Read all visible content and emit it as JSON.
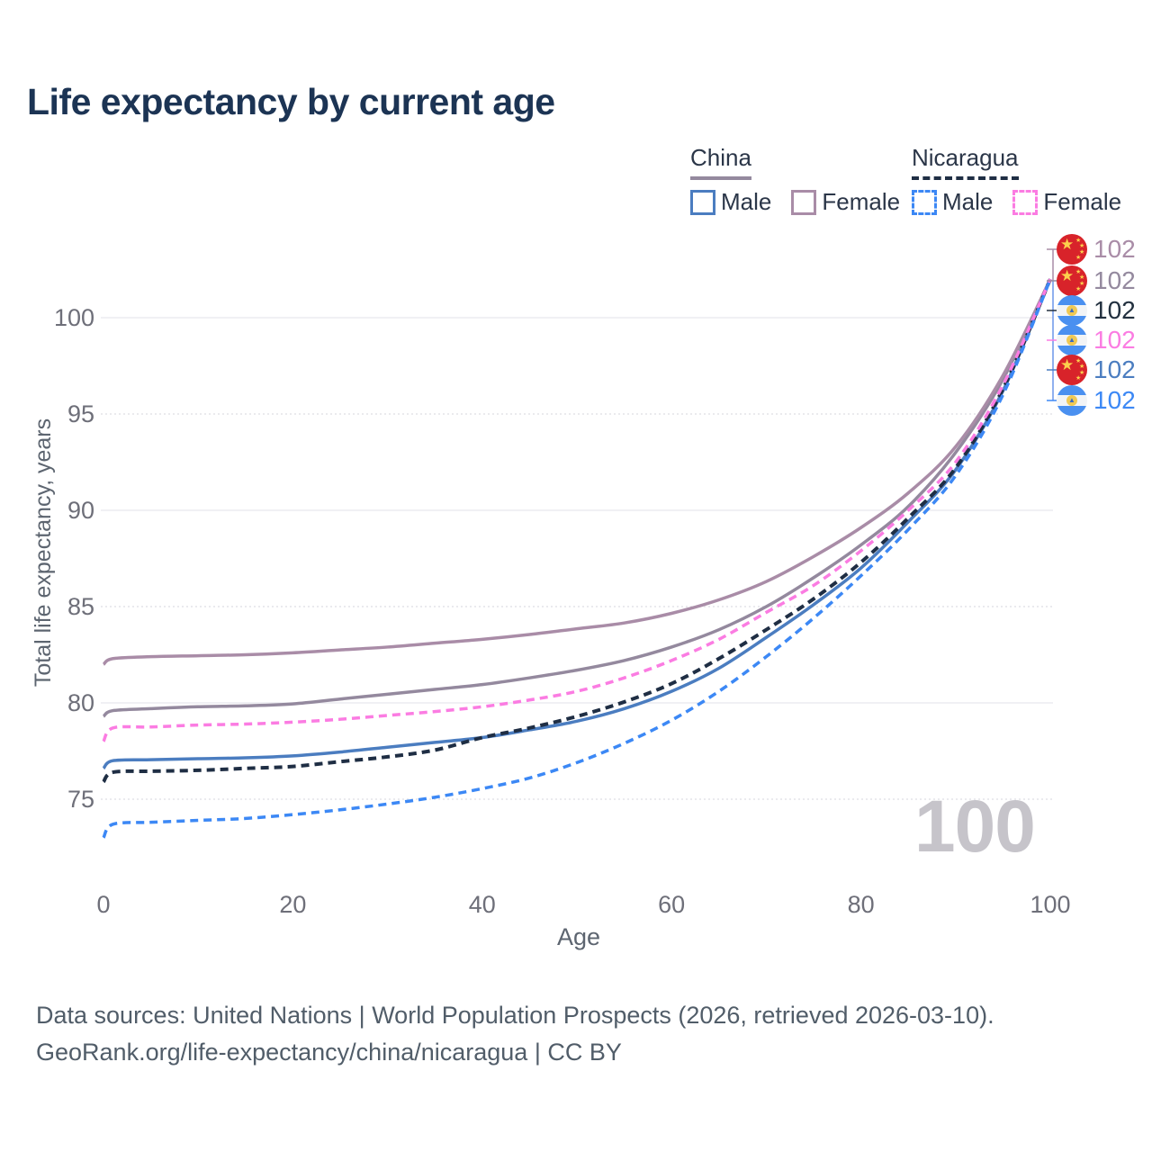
{
  "title": "Life expectancy by current age",
  "legend": {
    "china": {
      "label": "China",
      "male_label": "Male",
      "female_label": "Female"
    },
    "nicaragua": {
      "label": "Nicaragua",
      "male_label": "Male",
      "female_label": "Female"
    }
  },
  "axes": {
    "y_label": "Total life expectancy, years",
    "y_ticks": [
      75,
      80,
      85,
      90,
      95,
      100
    ],
    "x_label": "Age",
    "x_ticks": [
      0,
      20,
      40,
      60,
      80,
      100
    ]
  },
  "hover_age_watermark": "100",
  "end_labels": [
    {
      "flag": "china",
      "value": "102",
      "color": "#a98ca7",
      "series": "China Female"
    },
    {
      "flag": "china",
      "value": "102",
      "color": "#94899e",
      "series": "China Both sexes"
    },
    {
      "flag": "nicaragua",
      "value": "102",
      "color": "#22303f",
      "series": "Nicaragua Both sexes"
    },
    {
      "flag": "nicaragua",
      "value": "102",
      "color": "#fb7ce2",
      "series": "Nicaragua Female"
    },
    {
      "flag": "china",
      "value": "102",
      "color": "#4b7dc0",
      "series": "China Male"
    },
    {
      "flag": "nicaragua",
      "value": "102",
      "color": "#3c88f5",
      "series": "Nicaragua Male"
    }
  ],
  "footer": {
    "line1": "Data sources: United Nations | World Population Prospects (2026, retrieved 2026-03-10).",
    "line2": "GeoRank.org/life-expectancy/china/nicaragua | CC BY"
  },
  "colors": {
    "title": "#1c3454",
    "grid_solid": "#ececf0",
    "grid_dotted": "#e3e3e8",
    "tick_text": "#6e6f79",
    "china_flag_red": "#d8232a",
    "nicaragua_flag_blue": "#4a90f0",
    "connector_top": "#a98ca7",
    "connector_bottom": "#6b96ea"
  },
  "chart_data": {
    "type": "line",
    "title": "Life expectancy by current age",
    "xlabel": "Age",
    "ylabel": "Total life expectancy, years",
    "xlim": [
      0,
      100
    ],
    "ylim_display": [
      72.5,
      103
    ],
    "grid": "horizontal",
    "legend_position": "top-right",
    "x": [
      0,
      1,
      5,
      10,
      15,
      20,
      25,
      30,
      35,
      40,
      45,
      50,
      55,
      60,
      65,
      70,
      75,
      80,
      85,
      90,
      95,
      100
    ],
    "series": [
      {
        "name": "China Both sexes",
        "color": "#94899e",
        "dash": "solid",
        "width": 3.5,
        "values": [
          79.3,
          79.6,
          79.7,
          79.8,
          79.85,
          79.95,
          80.2,
          80.45,
          80.7,
          80.95,
          81.3,
          81.7,
          82.2,
          82.9,
          83.8,
          85.0,
          86.5,
          88.2,
          90.2,
          93.0,
          96.8,
          102
        ]
      },
      {
        "name": "China Female",
        "color": "#a98ca7",
        "dash": "solid",
        "width": 3.5,
        "values": [
          82.0,
          82.3,
          82.4,
          82.45,
          82.5,
          82.6,
          82.75,
          82.9,
          83.1,
          83.3,
          83.55,
          83.85,
          84.15,
          84.65,
          85.35,
          86.3,
          87.6,
          89.1,
          90.9,
          93.3,
          97.0,
          102
        ]
      },
      {
        "name": "China Male",
        "color": "#4b7dc0",
        "dash": "solid",
        "width": 3.5,
        "values": [
          76.6,
          77.0,
          77.05,
          77.1,
          77.15,
          77.25,
          77.45,
          77.7,
          77.95,
          78.2,
          78.6,
          79.05,
          79.7,
          80.6,
          81.8,
          83.4,
          85.1,
          87.0,
          89.4,
          92.1,
          96.2,
          102
        ]
      },
      {
        "name": "Nicaragua Both sexes",
        "color": "#1f2e44",
        "dash": "dashed",
        "width": 4,
        "values": [
          75.9,
          76.4,
          76.45,
          76.5,
          76.6,
          76.7,
          76.95,
          77.2,
          77.55,
          78.2,
          78.7,
          79.3,
          80.05,
          81.0,
          82.3,
          83.8,
          85.4,
          87.3,
          89.6,
          92.2,
          96.3,
          102
        ]
      },
      {
        "name": "Nicaragua Female",
        "color": "#fb7ce2",
        "dash": "dashed",
        "width": 3.5,
        "values": [
          78.0,
          78.7,
          78.75,
          78.85,
          78.9,
          79.0,
          79.15,
          79.35,
          79.55,
          79.8,
          80.15,
          80.6,
          81.3,
          82.2,
          83.3,
          84.7,
          86.1,
          87.9,
          90.0,
          92.5,
          96.5,
          102
        ]
      },
      {
        "name": "Nicaragua Male",
        "color": "#3c88f5",
        "dash": "dashed",
        "width": 3.5,
        "values": [
          73.0,
          73.7,
          73.8,
          73.9,
          74.0,
          74.2,
          74.45,
          74.75,
          75.1,
          75.55,
          76.1,
          76.9,
          77.9,
          79.1,
          80.6,
          82.4,
          84.4,
          86.6,
          89.0,
          91.8,
          96.0,
          102
        ]
      }
    ]
  }
}
